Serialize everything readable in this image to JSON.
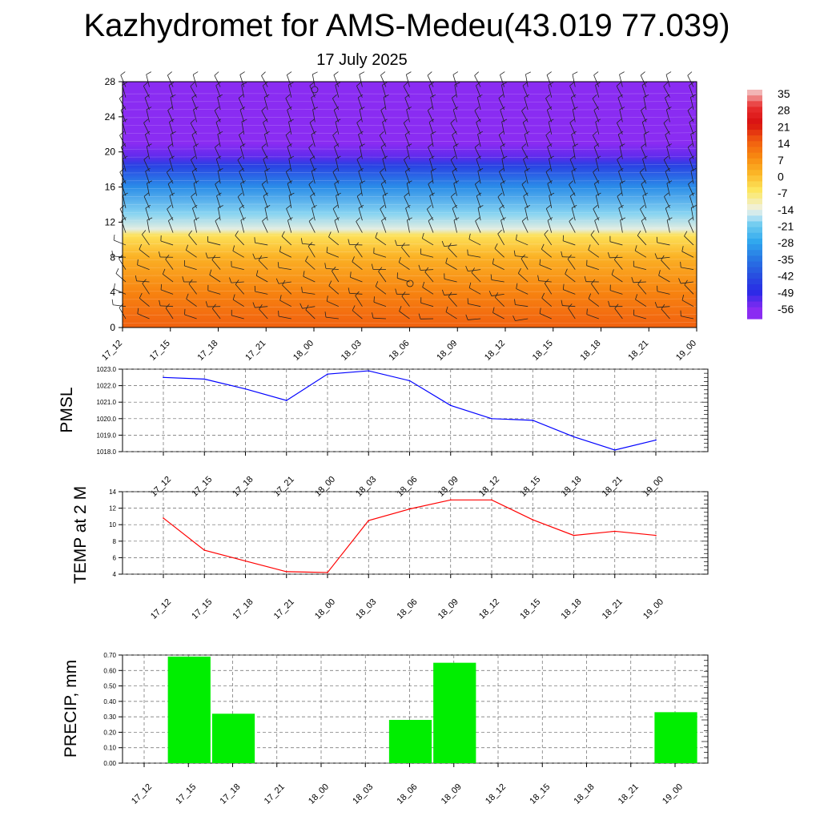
{
  "title": "Kazhydromet for AMS-Medeu(43.019 77.039)",
  "subtitle": "17 July 2025",
  "colors": {
    "pmsl_line": "#0000ff",
    "temp_line": "#ff0000",
    "precip_bar": "#00ee00",
    "grid": "#666666"
  },
  "chart_data": [
    {
      "type": "heatmap",
      "name": "temperature-wind-profile",
      "x_ticks": [
        "17_12",
        "17_15",
        "17_18",
        "17_21",
        "18_00",
        "18_03",
        "18_06",
        "18_09",
        "18_12",
        "18_15",
        "18_18",
        "18_21",
        "19_00"
      ],
      "y_ticks": [
        "0",
        "4",
        "8",
        "12",
        "16",
        "20",
        "24",
        "28"
      ],
      "ylim": [
        0,
        28
      ],
      "colorbar_labels": [
        "35",
        "28",
        "21",
        "14",
        "7",
        "0",
        "-7",
        "-14",
        "-21",
        "-28",
        "-35",
        "-42",
        "-49",
        "-56"
      ],
      "color_scale": {
        "stops": [
          {
            "value": 35,
            "color": "#f4d0d0"
          },
          {
            "value": 28,
            "color": "#e83030"
          },
          {
            "value": 21,
            "color": "#d81010"
          },
          {
            "value": 14,
            "color": "#f05a10"
          },
          {
            "value": 7,
            "color": "#f88a10"
          },
          {
            "value": 0,
            "color": "#fbb828"
          },
          {
            "value": -7,
            "color": "#fde860"
          },
          {
            "value": -14,
            "color": "#f0f0d8"
          },
          {
            "value": -17,
            "color": "#c8e8f4"
          },
          {
            "value": -21,
            "color": "#70ccf0"
          },
          {
            "value": -28,
            "color": "#30a8ee"
          },
          {
            "value": -35,
            "color": "#2878e4"
          },
          {
            "value": -42,
            "color": "#2850e0"
          },
          {
            "value": -49,
            "color": "#2a2ae6"
          },
          {
            "value": -56,
            "color": "#8a2cf2"
          }
        ]
      },
      "temperature_profile": [
        {
          "height": 0,
          "value": 13
        },
        {
          "height": 4,
          "value": 8
        },
        {
          "height": 8,
          "value": 1
        },
        {
          "height": 10.5,
          "value": -6
        },
        {
          "height": 11.2,
          "value": -15
        },
        {
          "height": 13,
          "value": -20
        },
        {
          "height": 16,
          "value": -32
        },
        {
          "height": 18.5,
          "value": -45
        },
        {
          "height": 19.5,
          "value": -53
        },
        {
          "height": 21,
          "value": -60
        },
        {
          "height": 28,
          "value": -60
        }
      ]
    },
    {
      "type": "line",
      "name": "pmsl",
      "ylabel": "PMSL",
      "x": [
        "17_12",
        "17_15",
        "17_18",
        "17_21",
        "18_00",
        "18_03",
        "18_06",
        "18_09",
        "18_12",
        "18_15",
        "18_18",
        "18_21",
        "19_00"
      ],
      "y_ticks": [
        "1018.0",
        "1019.0",
        "1020.0",
        "1021.0",
        "1022.0",
        "1023.0"
      ],
      "ylim": [
        1018,
        1023
      ],
      "series": [
        {
          "values": [
            1022.5,
            1022.4,
            1021.8,
            1021.1,
            1022.7,
            1022.9,
            1022.3,
            1020.8,
            1020.0,
            1019.9,
            1018.9,
            1018.1,
            1018.7
          ]
        }
      ]
    },
    {
      "type": "line",
      "name": "temp-2m",
      "ylabel": "TEMP at 2 M",
      "x": [
        "17_12",
        "17_15",
        "17_18",
        "17_21",
        "18_00",
        "18_03",
        "18_06",
        "18_09",
        "18_12",
        "18_15",
        "18_18",
        "18_21",
        "19_00"
      ],
      "y_ticks": [
        "4",
        "6",
        "8",
        "10",
        "12",
        "14"
      ],
      "ylim": [
        4,
        14
      ],
      "series": [
        {
          "values": [
            10.8,
            6.9,
            5.6,
            4.3,
            4.2,
            10.5,
            11.9,
            13.0,
            13.0,
            10.6,
            8.7,
            9.2,
            8.7
          ]
        }
      ]
    },
    {
      "type": "bar",
      "name": "precip",
      "ylabel": "PRECIP, mm",
      "categories": [
        "17_12",
        "17_15",
        "17_18",
        "17_21",
        "18_00",
        "18_03",
        "18_06",
        "18_09",
        "18_12",
        "18_15",
        "18_18",
        "18_21",
        "19_00"
      ],
      "y_ticks": [
        "0.00",
        "0.10",
        "0.20",
        "0.30",
        "0.40",
        "0.50",
        "0.60",
        "0.70"
      ],
      "ylim": [
        0,
        0.7
      ],
      "values": [
        0,
        0.69,
        0.32,
        0,
        0,
        0,
        0.28,
        0.65,
        0,
        0,
        0,
        0,
        0.33
      ]
    }
  ]
}
